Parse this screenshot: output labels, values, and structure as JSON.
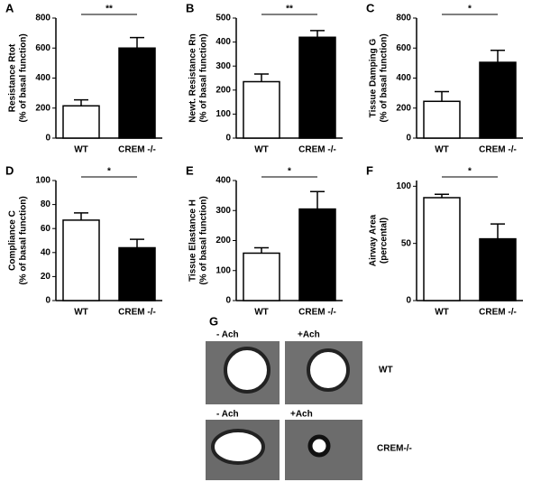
{
  "chart_data": [
    {
      "type": "bar",
      "panel": "A",
      "ylabel": "Resistance Rtot",
      "ylabel2": "(% of basal function)",
      "categories": [
        "WT",
        "CREM -/-"
      ],
      "values": [
        215,
        600
      ],
      "errors": [
        40,
        70
      ],
      "colors": [
        "#ffffff",
        "#000000"
      ],
      "ylim": [
        0,
        800
      ],
      "yticks": [
        0,
        200,
        400,
        600,
        800
      ],
      "significance": "**"
    },
    {
      "type": "bar",
      "panel": "B",
      "ylabel": "Newt. Resistance Rn",
      "ylabel2": "(% of basal function)",
      "categories": [
        "WT",
        "CREM -/-"
      ],
      "values": [
        235,
        420
      ],
      "errors": [
        32,
        28
      ],
      "colors": [
        "#ffffff",
        "#000000"
      ],
      "ylim": [
        0,
        500
      ],
      "yticks": [
        0,
        100,
        200,
        300,
        400,
        500
      ],
      "significance": "**"
    },
    {
      "type": "bar",
      "panel": "C",
      "ylabel": "Tissue Damping G",
      "ylabel2": "(% of basal function)",
      "categories": [
        "WT",
        "CREM -/-"
      ],
      "values": [
        245,
        505
      ],
      "errors": [
        65,
        80
      ],
      "colors": [
        "#ffffff",
        "#000000"
      ],
      "ylim": [
        0,
        800
      ],
      "yticks": [
        0,
        200,
        400,
        600,
        800
      ],
      "significance": "*"
    },
    {
      "type": "bar",
      "panel": "D",
      "ylabel": "Compliance C",
      "ylabel2": "(% of basal function)",
      "categories": [
        "WT",
        "CREM -/-"
      ],
      "values": [
        67,
        44
      ],
      "errors": [
        6,
        7
      ],
      "colors": [
        "#ffffff",
        "#000000"
      ],
      "ylim": [
        0,
        100
      ],
      "yticks": [
        0,
        20,
        40,
        60,
        80,
        100
      ],
      "significance": "*"
    },
    {
      "type": "bar",
      "panel": "E",
      "ylabel": "Tissue Elastance H",
      "ylabel2": "(% of basal function)",
      "categories": [
        "WT",
        "CREM -/-"
      ],
      "values": [
        158,
        305
      ],
      "errors": [
        18,
        58
      ],
      "colors": [
        "#ffffff",
        "#000000"
      ],
      "ylim": [
        0,
        400
      ],
      "yticks": [
        0,
        100,
        200,
        300,
        400
      ],
      "significance": "*"
    },
    {
      "type": "bar",
      "panel": "F",
      "ylabel": "Airway Area",
      "ylabel2": "(percental)",
      "categories": [
        "WT",
        "CREM -/-"
      ],
      "values": [
        90,
        54
      ],
      "errors": [
        3,
        13
      ],
      "colors": [
        "#ffffff",
        "#000000"
      ],
      "ylim": [
        0,
        105
      ],
      "yticks": [
        0,
        50,
        100
      ],
      "significance": "*"
    }
  ],
  "panel_g": {
    "panel": "G",
    "row1": {
      "left": "- Ach",
      "right": "+Ach",
      "label": "WT"
    },
    "row2": {
      "left": "- Ach",
      "right": "+Ach",
      "label": "CREM-/-"
    }
  }
}
